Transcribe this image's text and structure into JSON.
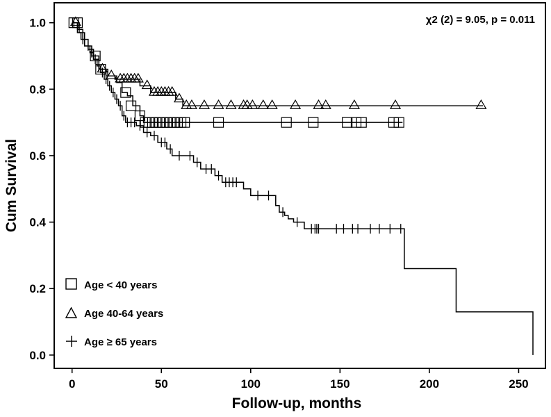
{
  "chart_data": {
    "type": "line",
    "subtype": "kaplan-meier",
    "title": "",
    "xlabel": "Follow-up, months",
    "ylabel": "Cum Survival",
    "xlim": [
      -10,
      265
    ],
    "ylim": [
      -0.04,
      1.06
    ],
    "x_ticks": [
      0,
      50,
      100,
      150,
      200,
      250
    ],
    "y_ticks": [
      0.0,
      0.2,
      0.4,
      0.6,
      0.8,
      1.0
    ],
    "x_tick_labels": [
      "0",
      "50",
      "100",
      "150",
      "200",
      "250"
    ],
    "y_tick_labels": [
      "0.0",
      "0.2",
      "0.4",
      "0.6",
      "0.8",
      "1.0"
    ],
    "annotation": "χ2 (2) = 9.05, p = 0.011",
    "legend_position": "bottom-left",
    "series": [
      {
        "name": "Age < 40 years",
        "marker": "square",
        "steps": [
          [
            0,
            1.0
          ],
          [
            4,
            0.97
          ],
          [
            7,
            0.93
          ],
          [
            11,
            0.9
          ],
          [
            15,
            0.86
          ],
          [
            20,
            0.84
          ],
          [
            25,
            0.82
          ],
          [
            28,
            0.79
          ],
          [
            31,
            0.78
          ],
          [
            34,
            0.75
          ],
          [
            38,
            0.72
          ],
          [
            40,
            0.7
          ],
          [
            185,
            0.7
          ]
        ],
        "censored": [
          [
            1,
            1.0
          ],
          [
            3,
            1.0
          ],
          [
            13,
            0.9
          ],
          [
            16,
            0.86
          ],
          [
            30,
            0.79
          ],
          [
            33,
            0.75
          ],
          [
            38,
            0.72
          ],
          [
            41,
            0.7
          ],
          [
            43,
            0.7
          ],
          [
            45,
            0.7
          ],
          [
            47,
            0.7
          ],
          [
            49,
            0.7
          ],
          [
            51,
            0.7
          ],
          [
            53,
            0.7
          ],
          [
            55,
            0.7
          ],
          [
            57,
            0.7
          ],
          [
            59,
            0.7
          ],
          [
            61,
            0.7
          ],
          [
            63,
            0.7
          ],
          [
            82,
            0.7
          ],
          [
            120,
            0.7
          ],
          [
            135,
            0.7
          ],
          [
            154,
            0.7
          ],
          [
            159,
            0.7
          ],
          [
            162,
            0.7
          ],
          [
            180,
            0.7
          ],
          [
            183,
            0.7
          ]
        ]
      },
      {
        "name": "Age 40-64 years",
        "marker": "triangle",
        "steps": [
          [
            0,
            1.0
          ],
          [
            3,
            0.98
          ],
          [
            6,
            0.95
          ],
          [
            9,
            0.92
          ],
          [
            12,
            0.89
          ],
          [
            15,
            0.86
          ],
          [
            19,
            0.84
          ],
          [
            24,
            0.83
          ],
          [
            38,
            0.81
          ],
          [
            44,
            0.79
          ],
          [
            58,
            0.77
          ],
          [
            62,
            0.75
          ],
          [
            230,
            0.75
          ]
        ],
        "censored": [
          [
            2,
            1.0
          ],
          [
            17,
            0.86
          ],
          [
            22,
            0.84
          ],
          [
            27,
            0.83
          ],
          [
            29,
            0.83
          ],
          [
            31,
            0.83
          ],
          [
            33,
            0.83
          ],
          [
            35,
            0.83
          ],
          [
            37,
            0.83
          ],
          [
            42,
            0.81
          ],
          [
            46,
            0.79
          ],
          [
            48,
            0.79
          ],
          [
            50,
            0.79
          ],
          [
            52,
            0.79
          ],
          [
            54,
            0.79
          ],
          [
            56,
            0.79
          ],
          [
            60,
            0.77
          ],
          [
            64,
            0.75
          ],
          [
            67,
            0.75
          ],
          [
            74,
            0.75
          ],
          [
            82,
            0.75
          ],
          [
            89,
            0.75
          ],
          [
            96,
            0.75
          ],
          [
            98,
            0.75
          ],
          [
            101,
            0.75
          ],
          [
            107,
            0.75
          ],
          [
            112,
            0.75
          ],
          [
            125,
            0.75
          ],
          [
            138,
            0.75
          ],
          [
            142,
            0.75
          ],
          [
            158,
            0.75
          ],
          [
            181,
            0.75
          ],
          [
            229,
            0.75
          ]
        ]
      },
      {
        "name": "Age ≥ 65 years",
        "marker": "plus",
        "steps": [
          [
            0,
            1.0
          ],
          [
            3,
            0.97
          ],
          [
            5,
            0.95
          ],
          [
            7,
            0.93
          ],
          [
            10,
            0.91
          ],
          [
            12,
            0.89
          ],
          [
            14,
            0.87
          ],
          [
            16,
            0.85
          ],
          [
            18,
            0.83
          ],
          [
            20,
            0.81
          ],
          [
            22,
            0.79
          ],
          [
            24,
            0.77
          ],
          [
            26,
            0.75
          ],
          [
            28,
            0.72
          ],
          [
            30,
            0.7
          ],
          [
            36,
            0.69
          ],
          [
            40,
            0.67
          ],
          [
            44,
            0.66
          ],
          [
            48,
            0.64
          ],
          [
            53,
            0.62
          ],
          [
            56,
            0.6
          ],
          [
            68,
            0.58
          ],
          [
            72,
            0.56
          ],
          [
            80,
            0.54
          ],
          [
            84,
            0.52
          ],
          [
            96,
            0.5
          ],
          [
            100,
            0.48
          ],
          [
            114,
            0.45
          ],
          [
            116,
            0.43
          ],
          [
            119,
            0.42
          ],
          [
            121,
            0.41
          ],
          [
            124,
            0.4
          ],
          [
            130,
            0.38
          ],
          [
            186,
            0.38
          ],
          [
            186,
            0.26
          ],
          [
            215,
            0.26
          ],
          [
            215,
            0.13
          ],
          [
            258,
            0.13
          ],
          [
            258,
            0.0
          ]
        ],
        "censored": [
          [
            1,
            1.0
          ],
          [
            6,
            0.95
          ],
          [
            9,
            0.93
          ],
          [
            11,
            0.91
          ],
          [
            13,
            0.89
          ],
          [
            15,
            0.87
          ],
          [
            17,
            0.85
          ],
          [
            19,
            0.83
          ],
          [
            21,
            0.81
          ],
          [
            23,
            0.79
          ],
          [
            25,
            0.77
          ],
          [
            27,
            0.75
          ],
          [
            29,
            0.72
          ],
          [
            31,
            0.7
          ],
          [
            33,
            0.7
          ],
          [
            35,
            0.7
          ],
          [
            38,
            0.69
          ],
          [
            42,
            0.67
          ],
          [
            46,
            0.66
          ],
          [
            50,
            0.64
          ],
          [
            52,
            0.64
          ],
          [
            55,
            0.62
          ],
          [
            60,
            0.6
          ],
          [
            66,
            0.6
          ],
          [
            70,
            0.58
          ],
          [
            75,
            0.56
          ],
          [
            78,
            0.56
          ],
          [
            82,
            0.54
          ],
          [
            86,
            0.52
          ],
          [
            88,
            0.52
          ],
          [
            90,
            0.52
          ],
          [
            92,
            0.52
          ],
          [
            104,
            0.48
          ],
          [
            110,
            0.48
          ],
          [
            118,
            0.43
          ],
          [
            126,
            0.4
          ],
          [
            134,
            0.38
          ],
          [
            136,
            0.38
          ],
          [
            137,
            0.38
          ],
          [
            138,
            0.38
          ],
          [
            148,
            0.38
          ],
          [
            152,
            0.38
          ],
          [
            157,
            0.38
          ],
          [
            160,
            0.38
          ],
          [
            167,
            0.38
          ],
          [
            172,
            0.38
          ],
          [
            178,
            0.38
          ],
          [
            184,
            0.38
          ]
        ]
      }
    ]
  }
}
